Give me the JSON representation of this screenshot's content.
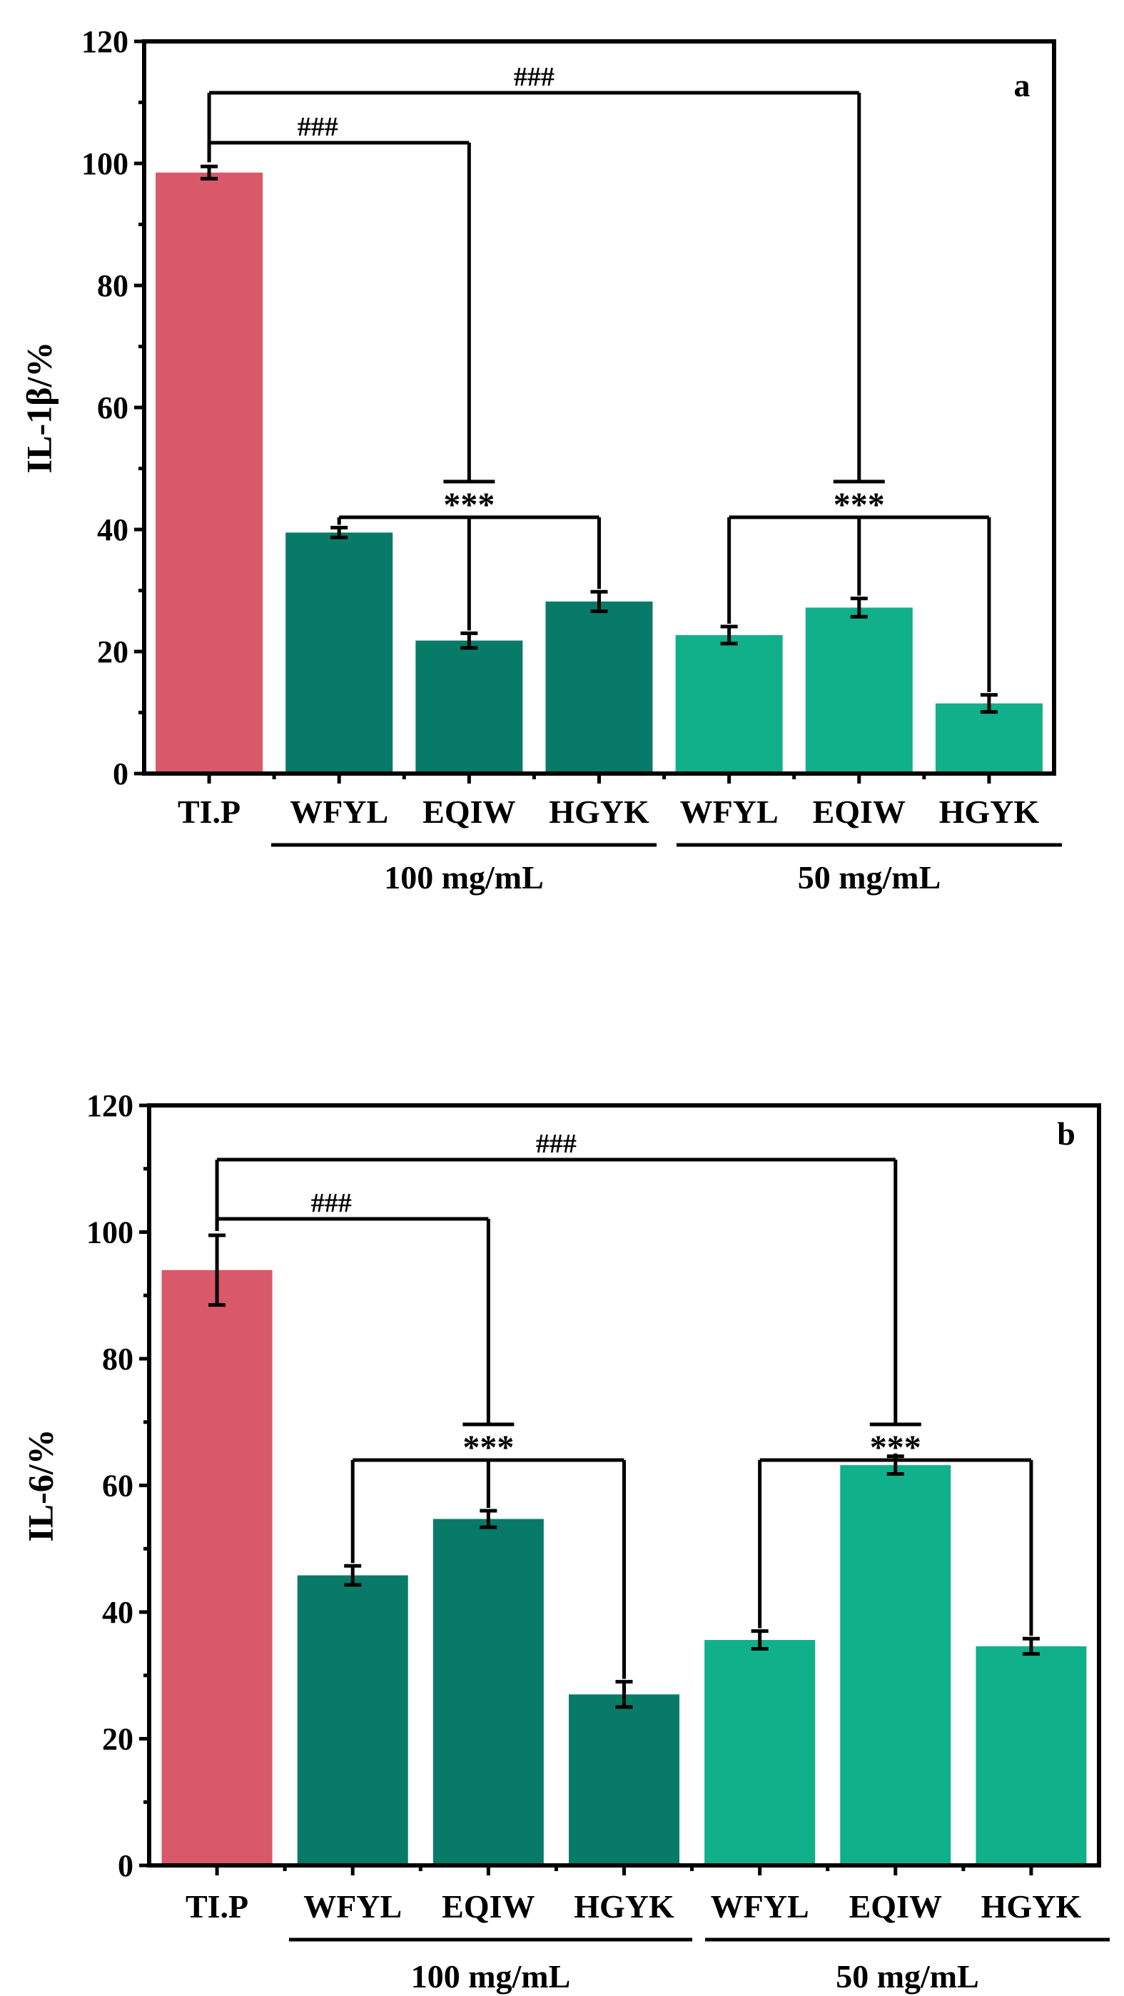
{
  "colors": {
    "control": "#d95869",
    "high": "#087b68",
    "low": "#10b08a"
  },
  "chart_data": [
    {
      "type": "bar",
      "panel_label": "a",
      "ylabel": "IL-1β/%",
      "ylim": [
        0,
        120
      ],
      "yticks": [
        0,
        20,
        40,
        60,
        80,
        100,
        120
      ],
      "ytick_labels": [
        "0",
        "20",
        "40",
        "60",
        "80",
        "100",
        "120"
      ],
      "categories": [
        "TI.P",
        "WFYL",
        "EQIW",
        "HGYK",
        "WFYL",
        "EQIW",
        "HGYK"
      ],
      "values": [
        98.5,
        39.5,
        21.8,
        28.2,
        22.7,
        27.2,
        11.5
      ],
      "errors": [
        1.0,
        0.8,
        1.2,
        1.6,
        1.4,
        1.5,
        1.4
      ],
      "groups": [
        "control",
        "high",
        "high",
        "high",
        "low",
        "low",
        "low"
      ],
      "group_labels": [
        {
          "text": "100 mg/mL",
          "from": 1,
          "to": 3
        },
        {
          "text": "50 mg/mL",
          "from": 4,
          "to": 6
        }
      ],
      "annotations": {
        "hash": "###",
        "star": "***"
      }
    },
    {
      "type": "bar",
      "panel_label": "b",
      "ylabel": "IL-6/%",
      "ylim": [
        0,
        120
      ],
      "yticks": [
        0,
        20,
        40,
        60,
        80,
        100,
        120
      ],
      "ytick_labels": [
        "0",
        "20",
        "40",
        "60",
        "80",
        "100",
        "120"
      ],
      "categories": [
        "TI.P",
        "WFYL",
        "EQIW",
        "HGYK",
        "WFYL",
        "EQIW",
        "HGYK"
      ],
      "values": [
        94.0,
        45.8,
        54.7,
        27.0,
        35.6,
        63.2,
        34.6
      ],
      "errors": [
        5.5,
        1.5,
        1.3,
        2.0,
        1.4,
        1.4,
        1.2
      ],
      "groups": [
        "control",
        "high",
        "high",
        "high",
        "low",
        "low",
        "low"
      ],
      "group_labels": [
        {
          "text": "100 mg/mL",
          "from": 1,
          "to": 3
        },
        {
          "text": "50 mg/mL",
          "from": 4,
          "to": 6
        }
      ],
      "annotations": {
        "hash": "###",
        "star": "***"
      }
    }
  ]
}
